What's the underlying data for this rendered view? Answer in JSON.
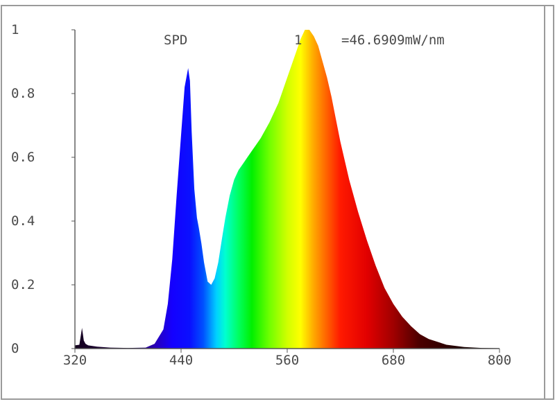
{
  "chart_data": {
    "type": "area",
    "title": "SPD",
    "scale_annotation": {
      "prefix": "1",
      "value": "=46.6909mW/nm"
    },
    "xlim": [
      320,
      800
    ],
    "ylim": [
      0,
      1
    ],
    "x_ticks": [
      "320",
      "440",
      "560",
      "680",
      "800"
    ],
    "y_ticks": [
      "0",
      "0.2",
      "0.4",
      "0.6",
      "0.8",
      "1"
    ],
    "fill": "visible-spectrum gradient by wavelength",
    "series": [
      {
        "x": [
          320,
          325,
          328,
          330,
          332,
          335,
          345,
          360,
          380,
          400,
          410,
          420,
          425,
          430,
          435,
          440,
          444,
          448,
          450,
          452,
          455,
          458,
          460,
          463,
          466,
          470,
          474,
          478,
          482,
          486,
          490,
          495,
          500,
          505,
          510,
          515,
          520,
          525,
          530,
          540,
          550,
          560,
          565,
          570,
          575,
          580,
          585,
          590,
          595,
          600,
          605,
          610,
          615,
          620,
          630,
          640,
          650,
          660,
          670,
          680,
          690,
          700,
          710,
          720,
          740,
          760,
          780,
          800
        ],
        "y": [
          0.01,
          0.012,
          0.065,
          0.025,
          0.015,
          0.01,
          0.006,
          0.003,
          0.002,
          0.003,
          0.015,
          0.06,
          0.14,
          0.28,
          0.48,
          0.67,
          0.82,
          0.88,
          0.84,
          0.68,
          0.5,
          0.41,
          0.38,
          0.33,
          0.27,
          0.21,
          0.2,
          0.22,
          0.27,
          0.34,
          0.41,
          0.48,
          0.53,
          0.56,
          0.58,
          0.6,
          0.62,
          0.64,
          0.66,
          0.71,
          0.77,
          0.85,
          0.89,
          0.93,
          0.97,
          1.0,
          1.0,
          0.98,
          0.95,
          0.9,
          0.85,
          0.79,
          0.72,
          0.65,
          0.53,
          0.43,
          0.34,
          0.26,
          0.19,
          0.14,
          0.1,
          0.07,
          0.045,
          0.03,
          0.012,
          0.005,
          0.002,
          0.001
        ]
      }
    ],
    "grid": false,
    "legend": "none"
  }
}
